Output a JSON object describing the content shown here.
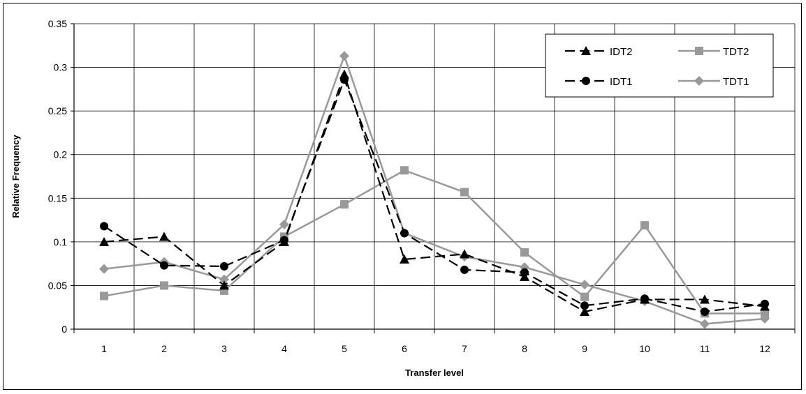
{
  "chart_data": {
    "type": "line",
    "title": "",
    "xlabel": "Transfer level",
    "ylabel": "Relative Frequency",
    "categories": [
      "1",
      "2",
      "3",
      "4",
      "5",
      "6",
      "7",
      "8",
      "9",
      "10",
      "11",
      "12"
    ],
    "ylim": [
      0,
      0.35
    ],
    "yticks": [
      "0",
      "0.05",
      "0.1",
      "0.15",
      "0.2",
      "0.25",
      "0.3",
      "0.35"
    ],
    "grid": true,
    "legend_position": "top-right",
    "series": [
      {
        "name": "IDT2",
        "values": [
          0.1,
          0.106,
          0.05,
          0.1,
          0.292,
          0.08,
          0.086,
          0.06,
          0.02,
          0.034,
          0.034,
          0.026
        ],
        "color": "#000000",
        "dash": true,
        "marker": "triangle"
      },
      {
        "name": "TDT2",
        "values": [
          0.038,
          0.05,
          0.044,
          0.106,
          0.143,
          0.182,
          0.157,
          0.088,
          0.037,
          0.119,
          0.018,
          0.018
        ],
        "color": "#999999",
        "dash": false,
        "marker": "square"
      },
      {
        "name": "IDT1",
        "values": [
          0.118,
          0.073,
          0.072,
          0.102,
          0.286,
          0.11,
          0.068,
          0.065,
          0.027,
          0.035,
          0.02,
          0.029
        ],
        "color": "#000000",
        "dash": true,
        "marker": "circle"
      },
      {
        "name": "TDT1",
        "values": [
          0.069,
          0.077,
          0.057,
          0.12,
          0.313,
          0.11,
          0.083,
          0.071,
          0.051,
          0.032,
          0.006,
          0.012
        ],
        "color": "#999999",
        "dash": false,
        "marker": "diamond"
      }
    ]
  }
}
